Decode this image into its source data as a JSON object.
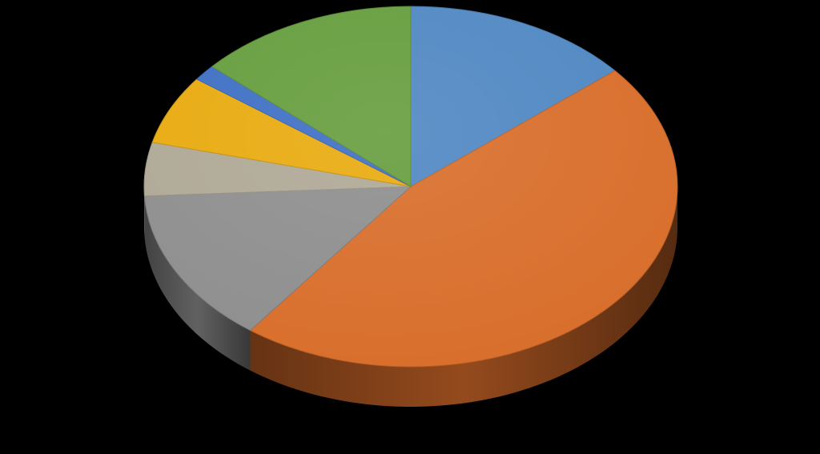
{
  "chart_data": {
    "type": "pie",
    "style": "3d",
    "legend": "none",
    "data_labels": "none",
    "slices": [
      {
        "value": 14.5,
        "color": "#4F87C2"
      },
      {
        "value": 48.5,
        "color": "#D86D2A"
      },
      {
        "value": 14.5,
        "color": "#8E8E8E"
      },
      {
        "value": 5.0,
        "color": "#AFA896"
      },
      {
        "value": 6.5,
        "color": "#E8AA0E"
      },
      {
        "value": 1.5,
        "color": "#3E6FC4"
      },
      {
        "value": 14.0,
        "color": "#659D3D"
      }
    ]
  }
}
